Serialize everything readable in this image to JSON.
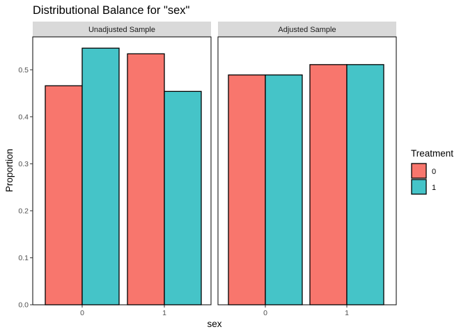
{
  "chart_data": {
    "type": "bar",
    "title": "Distributional Balance for \"sex\"",
    "xlabel": "sex",
    "ylabel": "Proportion",
    "ylim": [
      0,
      0.57
    ],
    "yticks": [
      0.0,
      0.1,
      0.2,
      0.3,
      0.4,
      0.5
    ],
    "ytick_labels": [
      "0.0",
      "0.1",
      "0.2",
      "0.3",
      "0.4",
      "0.5"
    ],
    "categories": [
      "0",
      "1"
    ],
    "legend": {
      "title": "Treatment",
      "placement": "right",
      "entries": [
        {
          "label": "0",
          "color": "#F8766D"
        },
        {
          "label": "1",
          "color": "#45C4C8"
        }
      ]
    },
    "panels": [
      {
        "name": "Unadjusted Sample",
        "series": [
          {
            "name": "0",
            "values": [
              0.466,
              0.534
            ]
          },
          {
            "name": "1",
            "values": [
              0.546,
              0.454
            ]
          }
        ]
      },
      {
        "name": "Adjusted Sample",
        "series": [
          {
            "name": "0",
            "values": [
              0.489,
              0.511
            ]
          },
          {
            "name": "1",
            "values": [
              0.489,
              0.511
            ]
          }
        ]
      }
    ],
    "grid": false
  }
}
